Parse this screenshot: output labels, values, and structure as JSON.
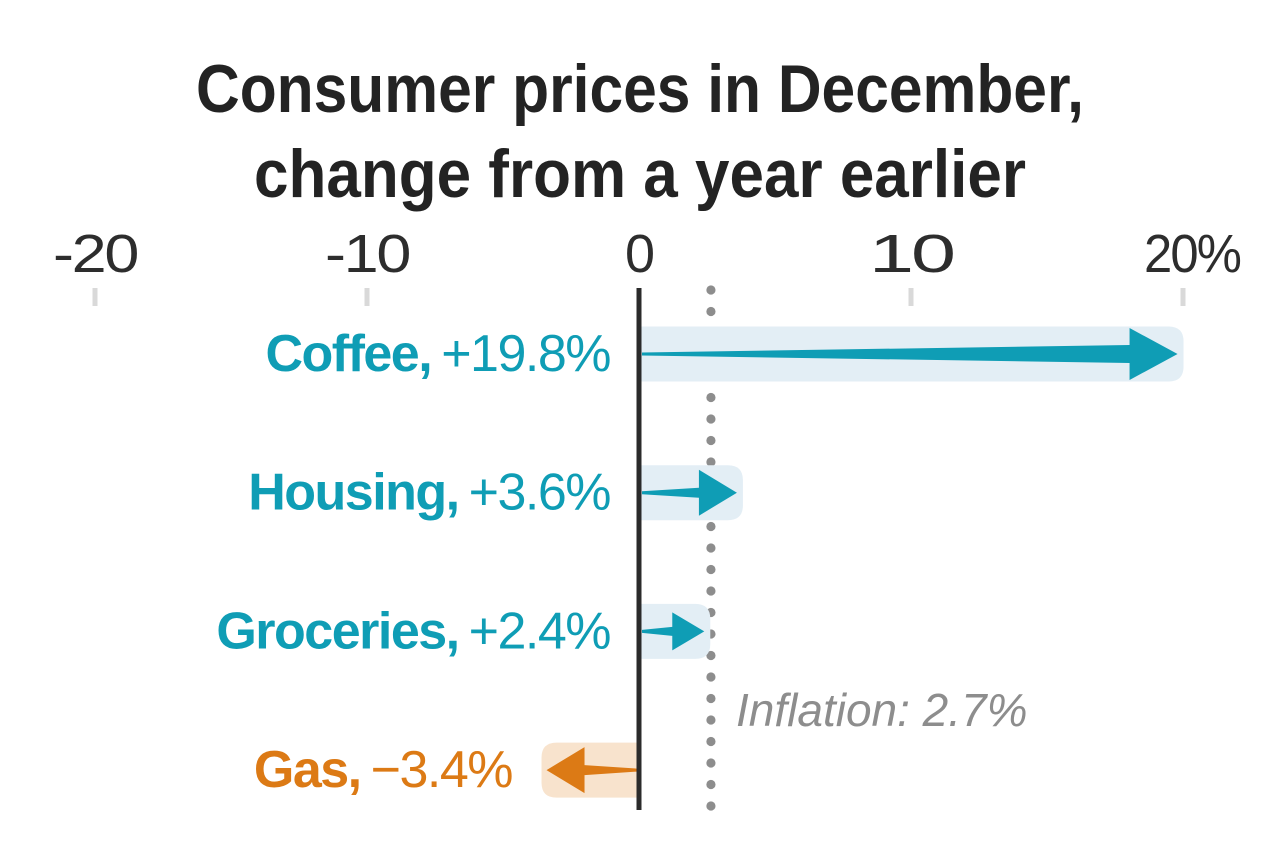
{
  "title": {
    "line1": "Consumer prices in December,",
    "line2": "change from a year earlier"
  },
  "chart_data": {
    "type": "bar",
    "subtype": "horizontal-arrow-bars",
    "title": "Consumer prices in December, change from a year earlier",
    "categories": [
      "Coffee",
      "Housing",
      "Groceries",
      "Gas"
    ],
    "category_labels": [
      "Coffee,",
      "Housing,",
      "Groceries,",
      "Gas,"
    ],
    "values": [
      19.8,
      3.6,
      2.4,
      -3.4
    ],
    "value_labels": [
      "+19.8%",
      "+3.6%",
      "+2.4%",
      "−3.4%"
    ],
    "x_ticks": [
      -20,
      -10,
      0,
      10,
      20
    ],
    "x_tick_labels": [
      "-20",
      "-10",
      "0",
      "10",
      "20%"
    ],
    "xlim": [
      -20,
      20
    ],
    "xlabel": "",
    "ylabel": "",
    "grid": false,
    "legend": null,
    "reference_line": {
      "label": "Inflation: 2.7%",
      "value": 2.7,
      "style": "dotted-vertical"
    },
    "colors": {
      "positive": "#0f9db5",
      "negative": "#dc7a15",
      "positive_band": "#e3eef5",
      "negative_band": "#f8e3cd",
      "axis_line": "#2b2b2b",
      "tick": "#d9d9d9",
      "dots": "#8d8d8d",
      "annotation": "#8d8d8d",
      "title": "#232323",
      "axis_label": "#2d2d2d"
    }
  }
}
